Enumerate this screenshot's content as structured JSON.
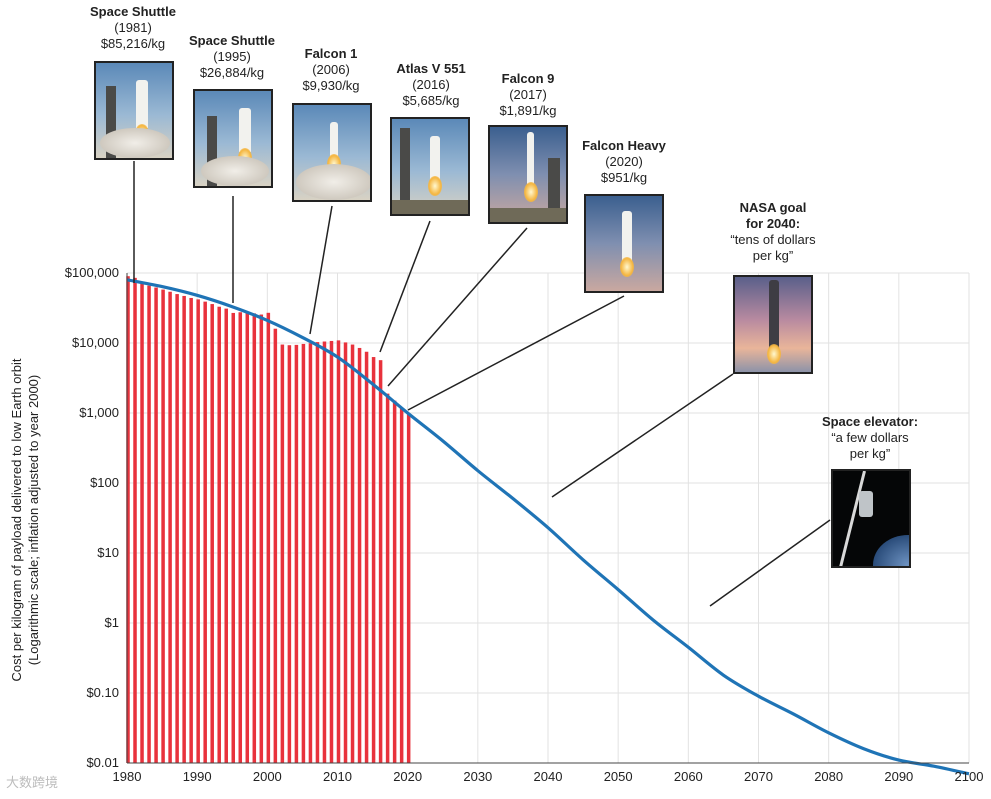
{
  "chart_data": {
    "type": "bar",
    "x_axis": {
      "range": [
        1980,
        2100
      ],
      "ticks": [
        1980,
        1990,
        2000,
        2010,
        2020,
        2030,
        2040,
        2050,
        2060,
        2070,
        2080,
        2090,
        2100
      ]
    },
    "y_axis": {
      "scale": "log",
      "range": [
        0.01,
        100000
      ],
      "tick_values": [
        0.01,
        0.1,
        1,
        10,
        100,
        1000,
        10000,
        100000
      ],
      "tick_labels": [
        "$0.01",
        "$0.10",
        "$1",
        "$10",
        "$100",
        "$1,000",
        "$10,000",
        "$100,000"
      ],
      "label_line1": "Cost per kilogram of payload delivered to low Earth orbit",
      "label_line2": "(Logarithmic scale; inflation adjusted to year 2000)"
    },
    "grid": true,
    "series": [
      {
        "kind": "bars",
        "color": "#e8323c",
        "x": [
          1980,
          1981,
          1982,
          1983,
          1984,
          1985,
          1986,
          1987,
          1988,
          1989,
          1990,
          1991,
          1992,
          1993,
          1994,
          1995,
          1996,
          1997,
          1998,
          1999,
          2000,
          2001,
          2002,
          2003,
          2004,
          2005,
          2006,
          2007,
          2008,
          2009,
          2010,
          2011,
          2012,
          2013,
          2014,
          2015,
          2016,
          2017,
          2018,
          2019,
          2020
        ],
        "y": [
          90000,
          85216,
          72000,
          66000,
          62000,
          58000,
          54000,
          50000,
          47000,
          44000,
          42000,
          39000,
          36000,
          33000,
          31000,
          26884,
          27500,
          28000,
          26500,
          25500,
          27000,
          16000,
          9500,
          9300,
          9400,
          9700,
          9930,
          10300,
          10500,
          10700,
          10900,
          10200,
          9500,
          8500,
          7500,
          6300,
          5685,
          1891,
          1500,
          1200,
          951
        ]
      },
      {
        "kind": "line",
        "color": "#1f74b6",
        "x": [
          1980,
          1985,
          1990,
          1995,
          2000,
          2005,
          2010,
          2015,
          2020,
          2025,
          2030,
          2035,
          2040,
          2045,
          2050,
          2055,
          2060,
          2065,
          2070,
          2075,
          2080,
          2085,
          2090,
          2095,
          2100
        ],
        "y": [
          80000,
          64000,
          48000,
          33000,
          21000,
          12000,
          6300,
          2600,
          1000,
          400,
          150,
          60,
          23,
          8,
          3,
          1.1,
          0.45,
          0.18,
          0.09,
          0.05,
          0.027,
          0.016,
          0.011,
          0.009,
          0.007
        ]
      }
    ]
  },
  "annotations": [
    {
      "name": "Space Shuttle",
      "year": "(1981)",
      "cost": "$85,216/kg"
    },
    {
      "name": "Space Shuttle",
      "year": "(1995)",
      "cost": "$26,884/kg"
    },
    {
      "name": "Falcon 1",
      "year": "(2006)",
      "cost": "$9,930/kg"
    },
    {
      "name": "Atlas V 551",
      "year": "(2016)",
      "cost": "$5,685/kg"
    },
    {
      "name": "Falcon 9",
      "year": "(2017)",
      "cost": "$1,891/kg"
    },
    {
      "name": "Falcon Heavy",
      "year": "(2020)",
      "cost": "$951/kg"
    },
    {
      "name": "NASA goal",
      "name2": "for 2040:",
      "quote1": "“tens of dollars",
      "quote2": "per kg”"
    },
    {
      "name": "Space elevator:",
      "quote1": "“a few dollars",
      "quote2": "per kg”"
    }
  ],
  "watermark": "大数跨境"
}
